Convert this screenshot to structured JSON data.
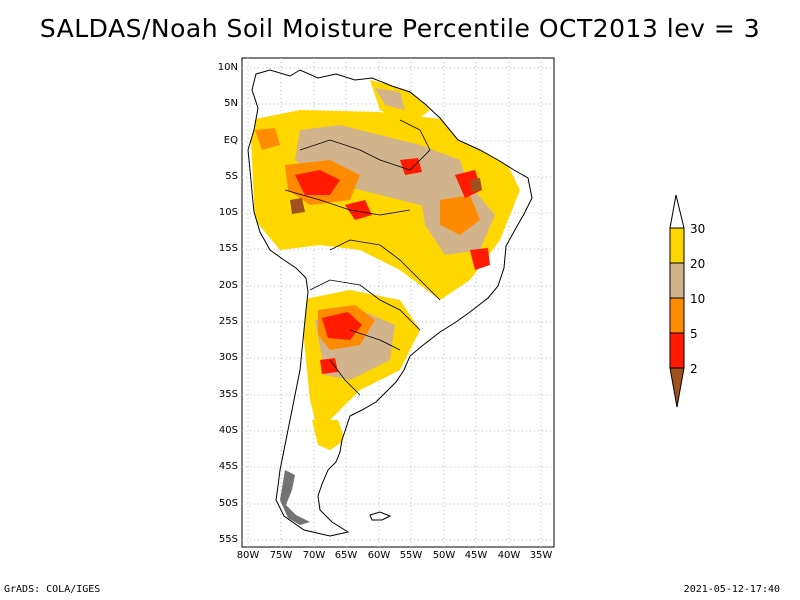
{
  "title": "SALDAS/Noah Soil Moisture Percentile OCT2013 lev = 3",
  "lat_labels": [
    "10N",
    "5N",
    "EQ",
    "5S",
    "10S",
    "15S",
    "20S",
    "25S",
    "30S",
    "35S",
    "40S",
    "45S",
    "50S",
    "55S"
  ],
  "lon_labels": [
    "80W",
    "75W",
    "70W",
    "65W",
    "60W",
    "55W",
    "50W",
    "45W",
    "40W",
    "35W"
  ],
  "colorbar": {
    "labels": [
      "2",
      "5",
      "10",
      "20",
      "30"
    ],
    "colors": {
      "below_2": "#a0521e",
      "2_5": "#ff1a00",
      "5_10": "#ff8c00",
      "10_20": "#d2b48c",
      "20_30": "#ffd700",
      "above_30": "#ffffff"
    }
  },
  "footer": {
    "left": "GrADS: COLA/IGES",
    "right": "2021-05-12-17:40"
  }
}
